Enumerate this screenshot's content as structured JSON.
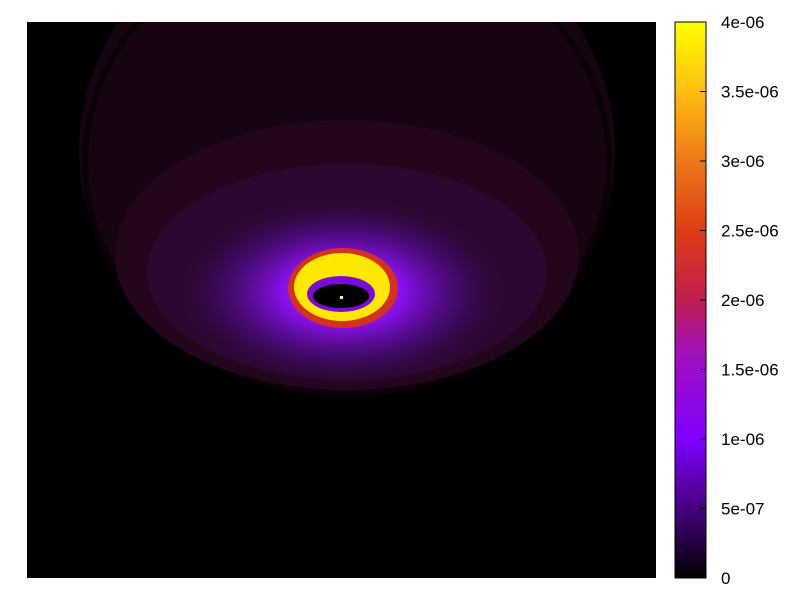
{
  "chart_data": {
    "type": "heatmap",
    "title": "",
    "xlabel": "",
    "ylabel": "",
    "colormap": "gnuplot pm3d (black-purple-red-orange-yellow)",
    "background_color": "#000000",
    "colorbar": {
      "min": 0,
      "max": 4e-06,
      "ticks": [
        {
          "value": 0,
          "label": "0"
        },
        {
          "value": 5e-07,
          "label": "5e-07"
        },
        {
          "value": 1e-06,
          "label": "1e-06"
        },
        {
          "value": 1.5e-06,
          "label": "1.5e-06"
        },
        {
          "value": 2e-06,
          "label": "2e-06"
        },
        {
          "value": 2.5e-06,
          "label": "2.5e-06"
        },
        {
          "value": 3e-06,
          "label": "3e-06"
        },
        {
          "value": 3.5e-06,
          "label": "3.5e-06"
        },
        {
          "value": 4e-06,
          "label": "4e-06"
        }
      ]
    },
    "features": [
      {
        "kind": "dome",
        "value": 1.5e-07
      },
      {
        "kind": "inner-dome",
        "value": 3e-07
      },
      {
        "kind": "glow",
        "value": 1.2e-06
      },
      {
        "kind": "ring",
        "value": 4e-06
      },
      {
        "kind": "ring-edge",
        "value": 2.2e-06
      },
      {
        "kind": "core-hole",
        "value": 0
      },
      {
        "kind": "center-dot",
        "value": 4e-06
      }
    ]
  },
  "colors": {
    "stops": [
      "#000000",
      "#3a0066",
      "#8000ff",
      "#b0148c",
      "#dc3c1e",
      "#f0901a",
      "#ffd010",
      "#ffff00"
    ]
  }
}
